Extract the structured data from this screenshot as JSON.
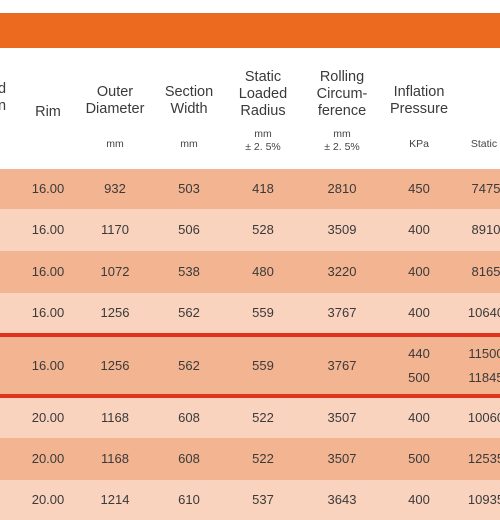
{
  "colors": {
    "banner": "#eb6a1f",
    "row_dark": "#f3b491",
    "row_light": "#f9d3bd",
    "highlight_line": "#e0331d"
  },
  "header": {
    "partial_left": [
      "d",
      "n"
    ],
    "rim": "Rim",
    "outer_diameter": [
      "Outer",
      "Diameter"
    ],
    "section_width": [
      "Section",
      "Width"
    ],
    "static_loaded_radius": [
      "Static",
      "Loaded",
      "Radius"
    ],
    "rolling_circumference": [
      "Rolling",
      "Circum-",
      "ference"
    ],
    "inflation_pressure": [
      "Inflation",
      "Pressure"
    ],
    "units": {
      "outer_diameter": "mm",
      "section_width": "mm",
      "static_loaded_radius": [
        "mm",
        "± 2. 5%"
      ],
      "rolling_circumference": [
        "mm",
        "± 2. 5%"
      ],
      "inflation_pressure": "KPa",
      "static": "Static"
    }
  },
  "rows": [
    {
      "rim": "16.00",
      "outer_diameter": "932",
      "section_width": "503",
      "static_loaded_radius": "418",
      "rolling_circumference": "2810",
      "pressure": [
        "450"
      ],
      "static": [
        "7475"
      ]
    },
    {
      "rim": "16.00",
      "outer_diameter": "1170",
      "section_width": "506",
      "static_loaded_radius": "528",
      "rolling_circumference": "3509",
      "pressure": [
        "400"
      ],
      "static": [
        "8910"
      ]
    },
    {
      "rim": "16.00",
      "outer_diameter": "1072",
      "section_width": "538",
      "static_loaded_radius": "480",
      "rolling_circumference": "3220",
      "pressure": [
        "400"
      ],
      "static": [
        "8165"
      ]
    },
    {
      "rim": "16.00",
      "outer_diameter": "1256",
      "section_width": "562",
      "static_loaded_radius": "559",
      "rolling_circumference": "3767",
      "pressure": [
        "400"
      ],
      "static": [
        "10640"
      ]
    },
    {
      "rim": "16.00",
      "outer_diameter": "1256",
      "section_width": "562",
      "static_loaded_radius": "559",
      "rolling_circumference": "3767",
      "pressure": [
        "440",
        "500"
      ],
      "static": [
        "11500",
        "11845"
      ]
    },
    {
      "rim": "20.00",
      "outer_diameter": "1168",
      "section_width": "608",
      "static_loaded_radius": "522",
      "rolling_circumference": "3507",
      "pressure": [
        "400"
      ],
      "static": [
        "10060"
      ]
    },
    {
      "rim": "20.00",
      "outer_diameter": "1168",
      "section_width": "608",
      "static_loaded_radius": "522",
      "rolling_circumference": "3507",
      "pressure": [
        "500"
      ],
      "static": [
        "12535"
      ]
    },
    {
      "rim": "20.00",
      "outer_diameter": "1214",
      "section_width": "610",
      "static_loaded_radius": "537",
      "rolling_circumference": "3643",
      "pressure": [
        "400"
      ],
      "static": [
        "10935"
      ]
    }
  ]
}
